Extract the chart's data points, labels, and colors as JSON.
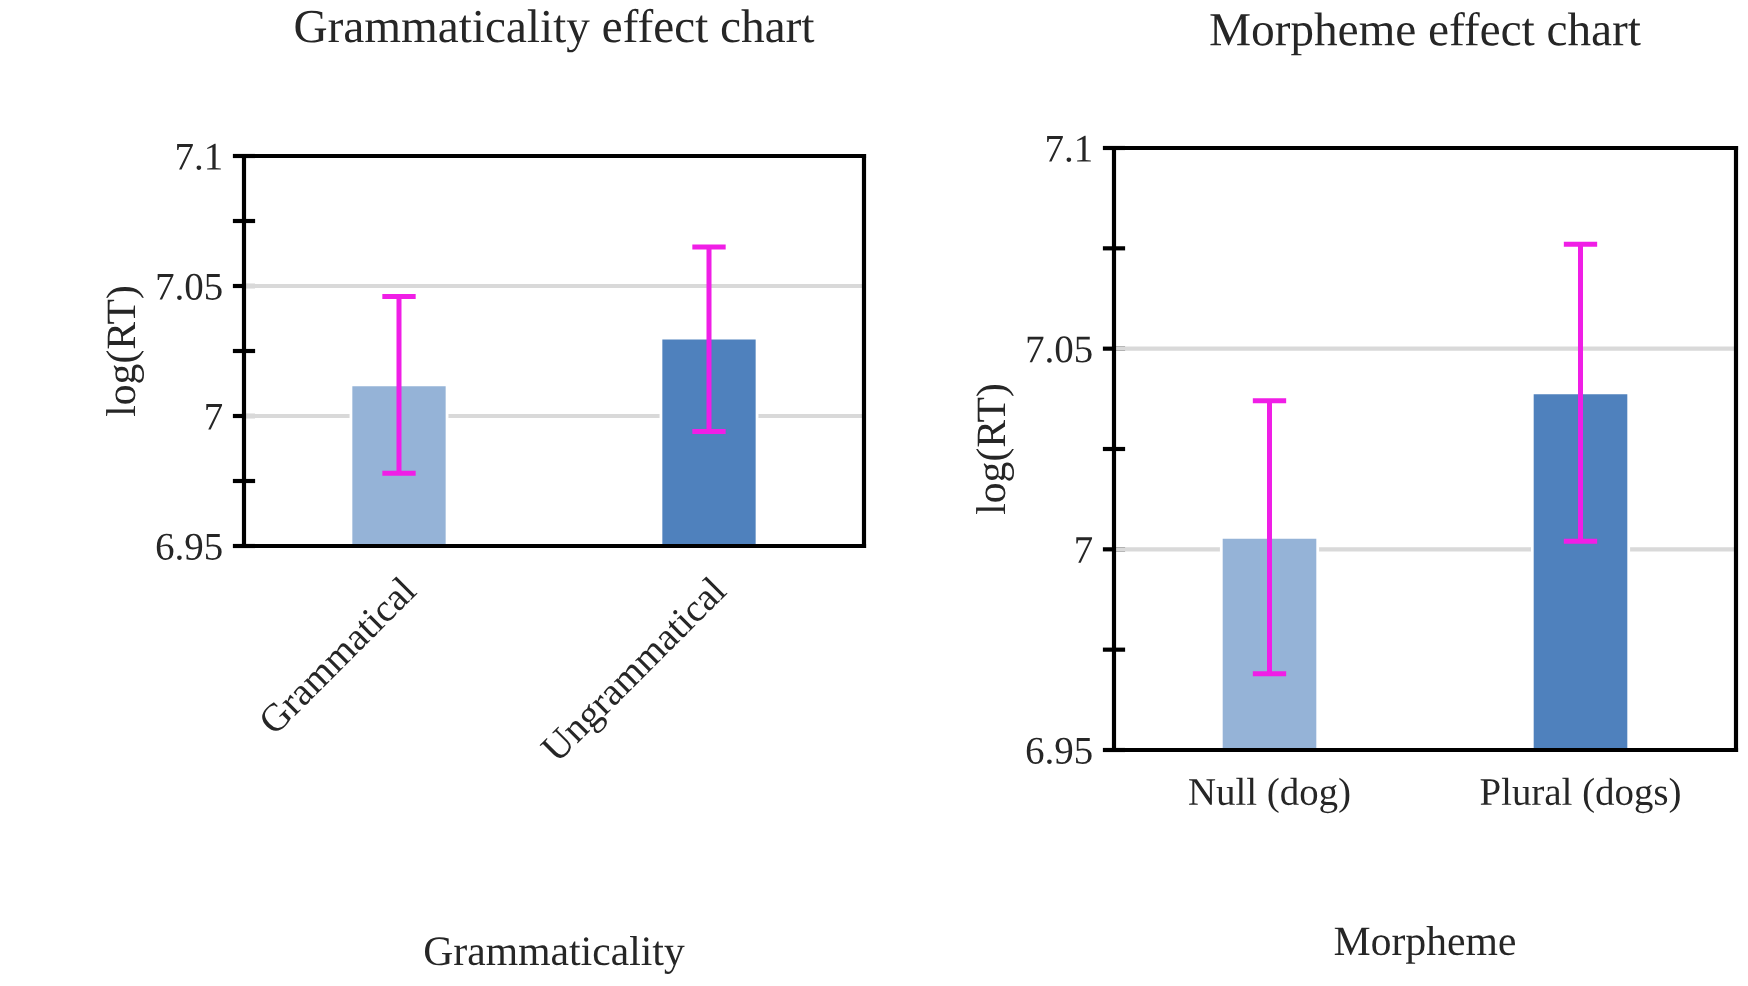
{
  "chart_data": [
    {
      "type": "bar",
      "title": "Grammaticality effect chart",
      "xlabel": "Grammaticality",
      "ylabel": "log(RT)",
      "categories": [
        "Grammatical",
        "Ungrammatical"
      ],
      "values": [
        7.012,
        7.03
      ],
      "colors": [
        "#95b3d7",
        "#4f81bd"
      ],
      "errors": [
        [
          6.978,
          7.046
        ],
        [
          6.994,
          7.065
        ]
      ],
      "ylim": [
        6.95,
        7.1
      ],
      "yticks": [
        6.95,
        {
          "value": 6.975,
          "label": null
        },
        7,
        {
          "value": 7.025,
          "label": null
        },
        7.05,
        {
          "value": 7.075,
          "label": null
        },
        7.1
      ],
      "grid": "y"
    },
    {
      "type": "bar",
      "title": "Morpheme effect chart",
      "xlabel": "Morpheme",
      "ylabel": "log(RT)",
      "categories": [
        "Null (dog)",
        "Plural (dogs)"
      ],
      "values": [
        7.003,
        7.039
      ],
      "colors": [
        "#95b3d7",
        "#4f81bd"
      ],
      "errors": [
        [
          6.969,
          7.037
        ],
        [
          7.002,
          7.076
        ]
      ],
      "ylim": [
        6.95,
        7.1
      ],
      "yticks": [
        6.95,
        {
          "value": 6.975,
          "label": null
        },
        7,
        {
          "value": 7.025,
          "label": null
        },
        7.05,
        {
          "value": 7.075,
          "label": null
        },
        7.1
      ],
      "grid": "y"
    }
  ]
}
